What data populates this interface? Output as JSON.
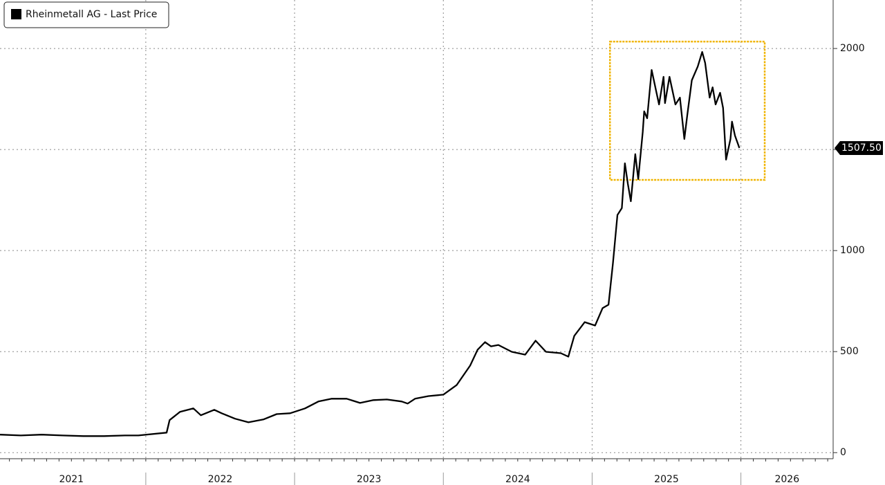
{
  "chart_data": {
    "type": "line",
    "legend_label": "Rheinmetall AG - Last Price",
    "series": [
      {
        "name": "Rheinmetall AG - Last Price",
        "color": "#000000",
        "x": [
          2021.02,
          2021.16,
          2021.3,
          2021.44,
          2021.58,
          2021.72,
          2021.86,
          2021.95,
          2022.14,
          2022.16,
          2022.23,
          2022.32,
          2022.37,
          2022.46,
          2022.51,
          2022.6,
          2022.69,
          2022.79,
          2022.88,
          2022.97,
          2023.07,
          2023.16,
          2023.25,
          2023.35,
          2023.44,
          2023.53,
          2023.62,
          2023.72,
          2023.76,
          2023.81,
          2023.9,
          2024.0,
          2024.09,
          2024.18,
          2024.23,
          2024.28,
          2024.32,
          2024.37,
          2024.46,
          2024.55,
          2024.62,
          2024.69,
          2024.79,
          2024.84,
          2024.88,
          2024.95,
          2025.02,
          2025.07,
          2025.11,
          2025.14,
          2025.17,
          2025.2,
          2025.22,
          2025.24,
          2025.26,
          2025.29,
          2025.31,
          2025.34,
          2025.35,
          2025.37,
          2025.4,
          2025.43,
          2025.45,
          2025.48,
          2025.49,
          2025.52,
          2025.56,
          2025.59,
          2025.62,
          2025.64,
          2025.67,
          2025.71,
          2025.74,
          2025.76,
          2025.79,
          2025.81,
          2025.83,
          2025.86,
          2025.88,
          2025.9,
          2025.93,
          2025.94,
          2025.96,
          2025.99
        ],
        "values": [
          89,
          85,
          89,
          85,
          82,
          82,
          85,
          85,
          99,
          161,
          202,
          219,
          185,
          212,
          195,
          168,
          150,
          164,
          191,
          195,
          219,
          253,
          267,
          267,
          246,
          260,
          263,
          253,
          243,
          267,
          280,
          287,
          335,
          431,
          509,
          547,
          526,
          533,
          499,
          485,
          554,
          499,
          492,
          475,
          578,
          646,
          629,
          715,
          732,
          937,
          1176,
          1210,
          1432,
          1330,
          1244,
          1477,
          1354,
          1586,
          1689,
          1655,
          1894,
          1791,
          1723,
          1860,
          1730,
          1860,
          1723,
          1757,
          1552,
          1672,
          1843,
          1911,
          1983,
          1928,
          1757,
          1808,
          1723,
          1781,
          1706,
          1450,
          1552,
          1638,
          1569,
          1507.5
        ]
      }
    ],
    "last_value": 1507.5,
    "last_value_label": "1507.50",
    "highlight": {
      "xlim": [
        2025.12,
        2026.16
      ],
      "ylim": [
        1350,
        2034
      ],
      "color": "#f0b400"
    },
    "xlim": [
      2021.02,
      2026.62
    ],
    "xticks": [
      {
        "value": 2021.5,
        "label": "2021"
      },
      {
        "value": 2022.5,
        "label": "2022"
      },
      {
        "value": 2023.5,
        "label": "2023"
      },
      {
        "value": 2024.5,
        "label": "2024"
      },
      {
        "value": 2025.5,
        "label": "2025"
      },
      {
        "value": 2026.31,
        "label": "2026"
      }
    ],
    "ylim": [
      -30,
      2240
    ],
    "yticks": [
      0,
      500,
      1000,
      1500,
      2000
    ],
    "grid": true
  }
}
